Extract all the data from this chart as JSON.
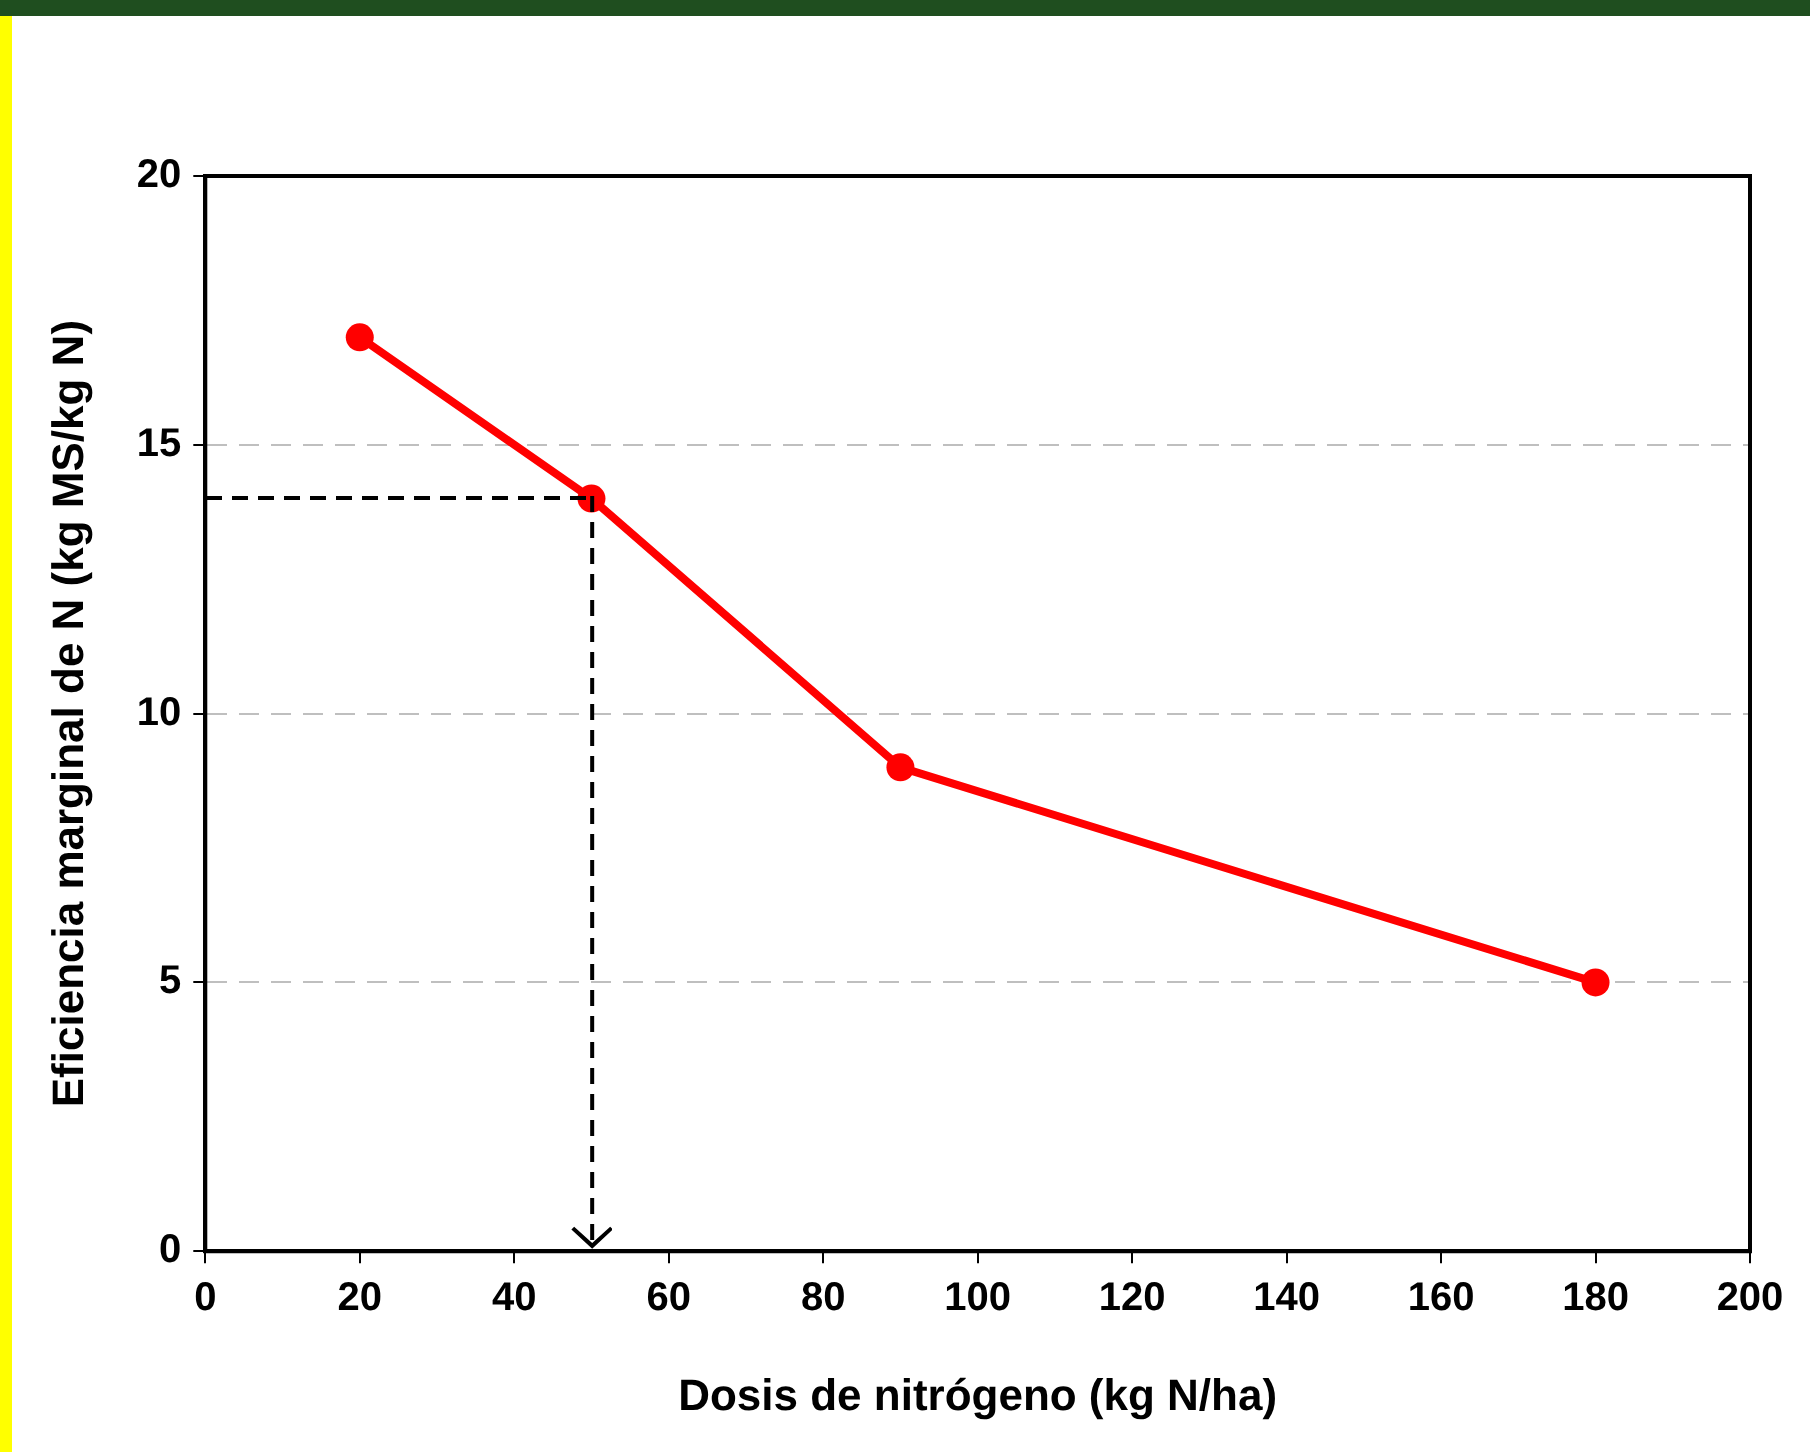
{
  "chart_data": {
    "type": "line",
    "xlabel": "Dosis de nitrógeno (kg N/ha)",
    "ylabel": "Eficiencia marginal de N (kg MS/kg N)",
    "x": [
      20,
      50,
      90,
      180
    ],
    "series": [
      {
        "color": "#ff0000",
        "values": [
          17,
          14,
          9,
          5
        ],
        "marker": "circle",
        "line_style": "solid"
      }
    ],
    "xlim": [
      0,
      200
    ],
    "xticks": [
      0,
      20,
      40,
      60,
      80,
      100,
      120,
      140,
      160,
      180,
      200
    ],
    "ylim": [
      0,
      20
    ],
    "yticks": [
      0,
      5,
      10,
      15,
      20
    ],
    "grid": "y",
    "legend": false
  }
}
